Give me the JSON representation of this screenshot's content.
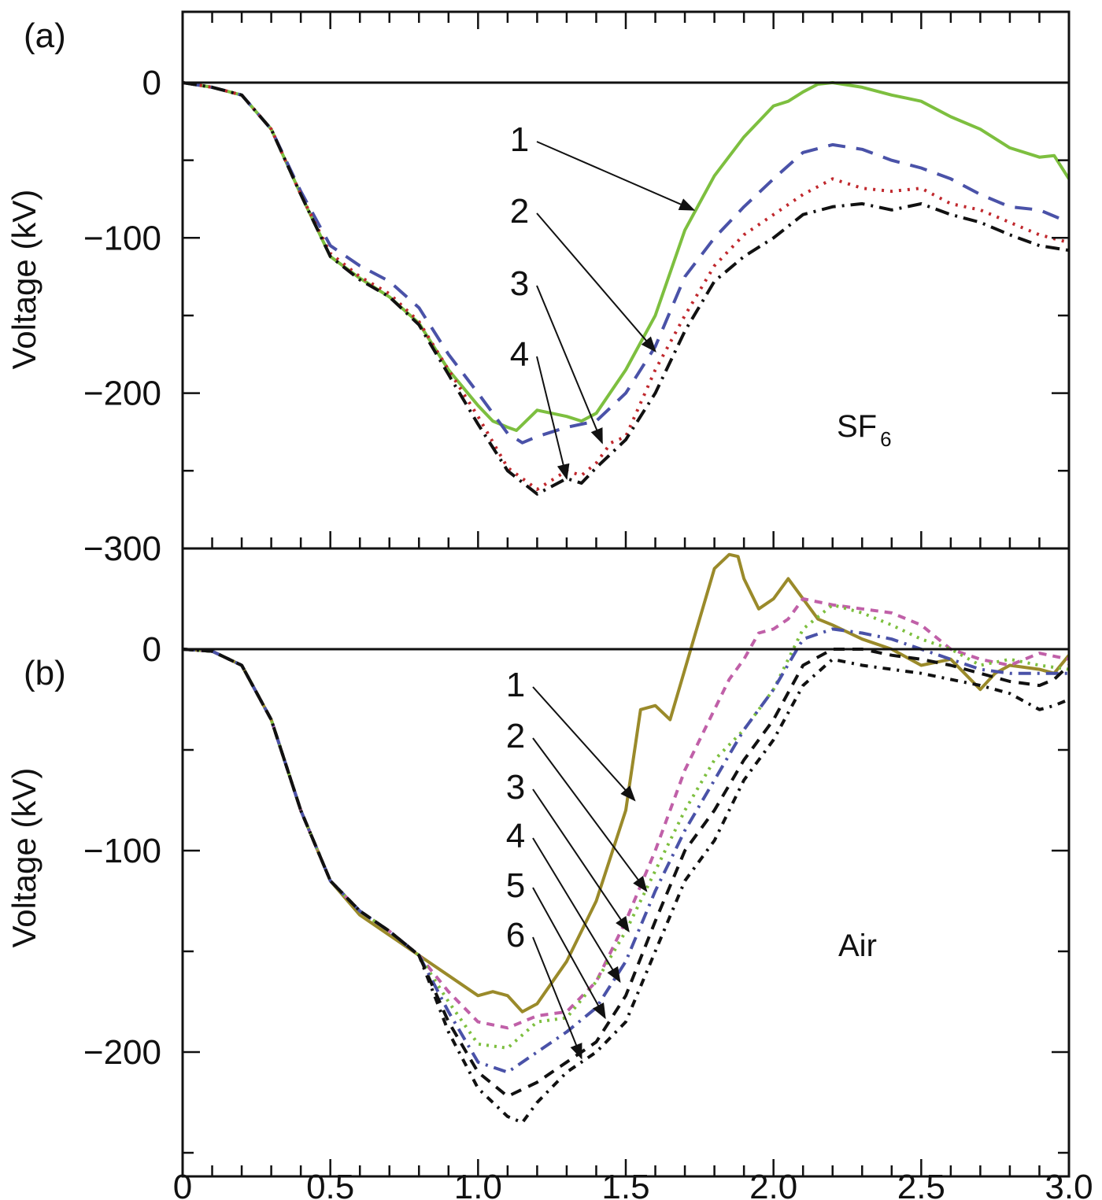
{
  "chart_data": [
    {
      "type": "line",
      "panel_label": "(a)",
      "annotation": {
        "text": "SF",
        "subscript": "6"
      },
      "xlabel": "",
      "ylabel": "Voltage (kV)",
      "xlim": [
        0,
        3.0
      ],
      "ylim": [
        -300,
        45
      ],
      "yticks": [
        0,
        -100,
        -200,
        -300
      ],
      "ytick_labels": [
        "0",
        "−100",
        "−200",
        "−300"
      ],
      "grid": false,
      "zero_line": true,
      "series": [
        {
          "name": "1",
          "color": "#7dbf3f",
          "dash": "solid",
          "x": [
            0,
            0.1,
            0.2,
            0.3,
            0.4,
            0.5,
            0.6,
            0.7,
            0.8,
            0.9,
            1.0,
            1.05,
            1.1,
            1.13,
            1.2,
            1.3,
            1.35,
            1.4,
            1.5,
            1.6,
            1.7,
            1.8,
            1.9,
            2.0,
            2.05,
            2.1,
            2.15,
            2.2,
            2.3,
            2.4,
            2.45,
            2.5,
            2.6,
            2.7,
            2.8,
            2.9,
            2.95,
            3.0
          ],
          "y": [
            0,
            -3,
            -8,
            -30,
            -72,
            -112,
            -126,
            -138,
            -155,
            -185,
            -208,
            -218,
            -222,
            -224,
            -211,
            -215,
            -218,
            -213,
            -185,
            -150,
            -95,
            -60,
            -35,
            -15,
            -12,
            -6,
            -1,
            0,
            -3,
            -8,
            -10,
            -12,
            -22,
            -30,
            -42,
            -48,
            -47,
            -62
          ]
        },
        {
          "name": "2",
          "color": "#4a52a8",
          "dash": "22,14",
          "x": [
            0,
            0.1,
            0.2,
            0.3,
            0.4,
            0.5,
            0.6,
            0.7,
            0.8,
            0.9,
            1.0,
            1.1,
            1.15,
            1.2,
            1.3,
            1.4,
            1.5,
            1.6,
            1.7,
            1.8,
            1.9,
            2.0,
            2.1,
            2.2,
            2.3,
            2.4,
            2.5,
            2.6,
            2.7,
            2.8,
            2.9,
            3.0
          ],
          "y": [
            0,
            -3,
            -8,
            -30,
            -70,
            -105,
            -118,
            -128,
            -145,
            -175,
            -200,
            -226,
            -232,
            -228,
            -222,
            -218,
            -200,
            -170,
            -125,
            -100,
            -80,
            -62,
            -45,
            -40,
            -43,
            -50,
            -55,
            -62,
            -72,
            -80,
            -82,
            -90
          ]
        },
        {
          "name": "3",
          "color": "#c0282d",
          "dash": "3,8",
          "x": [
            0,
            0.1,
            0.2,
            0.3,
            0.4,
            0.5,
            0.6,
            0.7,
            0.8,
            0.9,
            1.0,
            1.1,
            1.2,
            1.3,
            1.35,
            1.4,
            1.45,
            1.5,
            1.6,
            1.7,
            1.8,
            1.9,
            2.0,
            2.1,
            2.2,
            2.3,
            2.4,
            2.5,
            2.6,
            2.7,
            2.8,
            2.9,
            3.0
          ],
          "y": [
            0,
            -3,
            -8,
            -30,
            -72,
            -110,
            -125,
            -136,
            -154,
            -185,
            -215,
            -248,
            -262,
            -250,
            -253,
            -245,
            -232,
            -228,
            -185,
            -150,
            -118,
            -98,
            -85,
            -72,
            -62,
            -68,
            -70,
            -68,
            -78,
            -82,
            -90,
            -98,
            -103
          ]
        },
        {
          "name": "4",
          "color": "#111111",
          "dash": "18,8,3,8",
          "x": [
            0,
            0.1,
            0.2,
            0.3,
            0.4,
            0.5,
            0.6,
            0.7,
            0.8,
            0.9,
            1.0,
            1.1,
            1.2,
            1.25,
            1.3,
            1.35,
            1.4,
            1.5,
            1.6,
            1.7,
            1.8,
            1.9,
            2.0,
            2.1,
            2.2,
            2.3,
            2.4,
            2.5,
            2.6,
            2.7,
            2.8,
            2.9,
            3.0
          ],
          "y": [
            0,
            -3,
            -8,
            -30,
            -72,
            -112,
            -127,
            -138,
            -156,
            -188,
            -220,
            -250,
            -265,
            -260,
            -255,
            -258,
            -248,
            -230,
            -200,
            -160,
            -128,
            -112,
            -100,
            -85,
            -80,
            -78,
            -82,
            -78,
            -85,
            -90,
            -98,
            -105,
            -108
          ]
        }
      ],
      "arrows": [
        {
          "label": "1",
          "to": [
            1.73,
            -82
          ]
        },
        {
          "label": "2",
          "to": [
            1.6,
            -173
          ]
        },
        {
          "label": "3",
          "to": [
            1.42,
            -232
          ]
        },
        {
          "label": "4",
          "to": [
            1.3,
            -255
          ]
        }
      ]
    },
    {
      "type": "line",
      "panel_label": "(b)",
      "annotation": {
        "text": "Air",
        "subscript": ""
      },
      "xlabel": "",
      "ylabel": "Voltage (kV)",
      "xlim": [
        0,
        3.0
      ],
      "ylim": [
        -262,
        50
      ],
      "yticks": [
        0,
        -100,
        -200
      ],
      "ytick_labels": [
        "0",
        "−100",
        "−200"
      ],
      "xticks": [
        0,
        0.5,
        1.0,
        1.5,
        2.0,
        2.5,
        3.0
      ],
      "xtick_labels": [
        "0",
        "0.5",
        "1.0",
        "1.5",
        "2.0",
        "2.5",
        "3.0"
      ],
      "grid": false,
      "zero_line": true,
      "series": [
        {
          "name": "1",
          "color": "#9a8a2a",
          "dash": "solid",
          "x": [
            0,
            0.1,
            0.2,
            0.3,
            0.4,
            0.5,
            0.6,
            0.7,
            0.8,
            0.9,
            1.0,
            1.05,
            1.1,
            1.15,
            1.2,
            1.3,
            1.4,
            1.5,
            1.55,
            1.6,
            1.65,
            1.7,
            1.75,
            1.8,
            1.85,
            1.88,
            1.9,
            1.95,
            2.0,
            2.05,
            2.1,
            2.15,
            2.2,
            2.3,
            2.4,
            2.5,
            2.6,
            2.7,
            2.75,
            2.8,
            2.9,
            2.95,
            3.0
          ],
          "y": [
            0,
            -1,
            -8,
            -35,
            -80,
            -115,
            -132,
            -142,
            -152,
            -162,
            -172,
            -170,
            -172,
            -180,
            -176,
            -155,
            -125,
            -80,
            -30,
            -28,
            -35,
            -10,
            15,
            40,
            47,
            46,
            35,
            20,
            25,
            35,
            25,
            15,
            12,
            5,
            0,
            -8,
            -5,
            -20,
            -12,
            -8,
            -10,
            -12,
            -3
          ]
        },
        {
          "name": "2",
          "color": "#c060a8",
          "dash": "10,8",
          "x": [
            0,
            0.1,
            0.2,
            0.3,
            0.4,
            0.5,
            0.6,
            0.7,
            0.8,
            0.9,
            1.0,
            1.1,
            1.2,
            1.3,
            1.4,
            1.5,
            1.6,
            1.7,
            1.8,
            1.85,
            1.9,
            1.95,
            2.0,
            2.05,
            2.1,
            2.2,
            2.3,
            2.4,
            2.5,
            2.6,
            2.7,
            2.8,
            2.9,
            3.0
          ],
          "y": [
            0,
            -1,
            -8,
            -35,
            -80,
            -115,
            -130,
            -140,
            -152,
            -170,
            -185,
            -188,
            -182,
            -180,
            -165,
            -135,
            -100,
            -60,
            -30,
            -15,
            -5,
            8,
            10,
            15,
            25,
            22,
            20,
            18,
            12,
            0,
            -5,
            -8,
            -2,
            -5
          ]
        },
        {
          "name": "3",
          "color": "#7dbf3f",
          "dash": "3,7",
          "x": [
            0,
            0.1,
            0.2,
            0.3,
            0.4,
            0.5,
            0.6,
            0.7,
            0.8,
            0.9,
            1.0,
            1.1,
            1.2,
            1.3,
            1.4,
            1.5,
            1.6,
            1.7,
            1.8,
            1.9,
            2.0,
            2.1,
            2.2,
            2.3,
            2.4,
            2.5,
            2.6,
            2.7,
            2.8,
            2.9,
            3.0
          ],
          "y": [
            0,
            -1,
            -8,
            -35,
            -80,
            -115,
            -130,
            -140,
            -152,
            -175,
            -196,
            -198,
            -185,
            -183,
            -165,
            -140,
            -110,
            -80,
            -55,
            -40,
            -20,
            10,
            22,
            18,
            12,
            5,
            0,
            -8,
            -5,
            -8,
            -10
          ]
        },
        {
          "name": "4",
          "color": "#4a52a8",
          "dash": "16,8,3,8",
          "x": [
            0,
            0.1,
            0.2,
            0.3,
            0.4,
            0.5,
            0.6,
            0.7,
            0.8,
            0.9,
            1.0,
            1.1,
            1.2,
            1.3,
            1.4,
            1.5,
            1.6,
            1.7,
            1.8,
            1.9,
            2.0,
            2.1,
            2.2,
            2.3,
            2.4,
            2.5,
            2.6,
            2.7,
            2.8,
            2.9,
            3.0
          ],
          "y": [
            0,
            -1,
            -8,
            -35,
            -80,
            -115,
            -130,
            -140,
            -152,
            -180,
            -205,
            -210,
            -200,
            -190,
            -178,
            -155,
            -120,
            -90,
            -65,
            -40,
            -20,
            5,
            10,
            8,
            5,
            0,
            -5,
            -10,
            -12,
            -12,
            -12
          ]
        },
        {
          "name": "5",
          "color": "#111111",
          "dash": "14,10",
          "x": [
            0,
            0.1,
            0.2,
            0.3,
            0.4,
            0.5,
            0.6,
            0.7,
            0.8,
            0.9,
            1.0,
            1.1,
            1.2,
            1.3,
            1.4,
            1.5,
            1.6,
            1.7,
            1.8,
            1.9,
            2.0,
            2.1,
            2.2,
            2.3,
            2.4,
            2.5,
            2.6,
            2.7,
            2.8,
            2.9,
            2.95,
            3.0
          ],
          "y": [
            0,
            -1,
            -8,
            -35,
            -80,
            -115,
            -130,
            -140,
            -152,
            -185,
            -210,
            -222,
            -215,
            -205,
            -195,
            -172,
            -135,
            -100,
            -80,
            -55,
            -35,
            -8,
            0,
            0,
            -3,
            -5,
            -8,
            -12,
            -16,
            -18,
            -15,
            -8
          ]
        },
        {
          "name": "6",
          "color": "#111111",
          "dash": "10,8,3,8",
          "x": [
            0,
            0.1,
            0.2,
            0.3,
            0.4,
            0.5,
            0.6,
            0.7,
            0.8,
            0.9,
            1.0,
            1.1,
            1.15,
            1.2,
            1.3,
            1.4,
            1.5,
            1.6,
            1.7,
            1.8,
            1.9,
            2.0,
            2.1,
            2.2,
            2.3,
            2.4,
            2.5,
            2.6,
            2.7,
            2.8,
            2.9,
            2.95,
            3.0
          ],
          "y": [
            0,
            -1,
            -8,
            -35,
            -80,
            -115,
            -130,
            -140,
            -152,
            -190,
            -218,
            -232,
            -235,
            -225,
            -210,
            -200,
            -185,
            -150,
            -115,
            -95,
            -65,
            -45,
            -18,
            -5,
            -8,
            -10,
            -12,
            -15,
            -18,
            -22,
            -30,
            -28,
            -25
          ]
        }
      ],
      "arrows": [
        {
          "label": "1",
          "to": [
            1.53,
            -75
          ]
        },
        {
          "label": "2",
          "to": [
            1.57,
            -120
          ]
        },
        {
          "label": "3",
          "to": [
            1.51,
            -140
          ]
        },
        {
          "label": "4",
          "to": [
            1.48,
            -165
          ]
        },
        {
          "label": "5",
          "to": [
            1.43,
            -183
          ]
        },
        {
          "label": "6",
          "to": [
            1.35,
            -203
          ]
        }
      ]
    }
  ]
}
